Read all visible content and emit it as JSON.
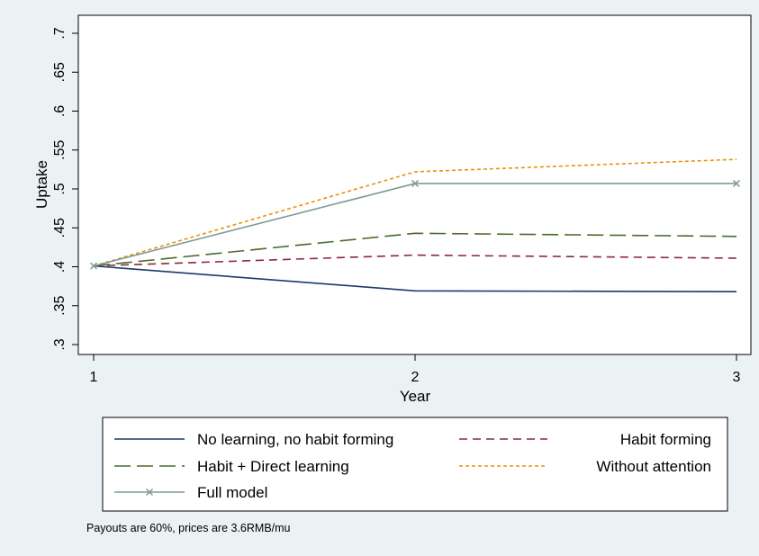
{
  "chart_data": {
    "type": "line",
    "title": "",
    "xlabel": "Year",
    "ylabel": "Uptake",
    "x": [
      1,
      2,
      3
    ],
    "x_ticks": [
      {
        "value": 1,
        "label": "1"
      },
      {
        "value": 2,
        "label": "2"
      },
      {
        "value": 3,
        "label": "3"
      }
    ],
    "xlim": [
      1,
      3
    ],
    "ylim": [
      0.3,
      0.7
    ],
    "y_ticks": [
      {
        "value": 0.3,
        "label": ".3"
      },
      {
        "value": 0.35,
        "label": ".35"
      },
      {
        "value": 0.4,
        "label": ".4"
      },
      {
        "value": 0.45,
        "label": ".45"
      },
      {
        "value": 0.5,
        "label": ".5"
      },
      {
        "value": 0.55,
        "label": ".55"
      },
      {
        "value": 0.6,
        "label": ".6"
      },
      {
        "value": 0.65,
        "label": ".65"
      },
      {
        "value": 0.7,
        "label": ".7"
      }
    ],
    "grid": false,
    "legend_placement": "bottom",
    "series": [
      {
        "name": "No learning, no habit forming",
        "values": [
          0.401,
          0.369,
          0.368
        ],
        "color": "#1a3a6b",
        "dash": "solid",
        "marker": "none"
      },
      {
        "name": "Habit forming",
        "values": [
          0.401,
          0.415,
          0.411
        ],
        "color": "#8b2a3a",
        "dash": "medium",
        "marker": "none"
      },
      {
        "name": "Habit + Direct learning",
        "values": [
          0.401,
          0.443,
          0.439
        ],
        "color": "#4a6b2a",
        "dash": "long",
        "marker": "none"
      },
      {
        "name": "Without attention",
        "values": [
          0.401,
          0.522,
          0.538
        ],
        "color": "#e8930c",
        "dash": "short",
        "marker": "none"
      },
      {
        "name": "Full model",
        "values": [
          0.401,
          0.507,
          0.507
        ],
        "color": "#7f9a98",
        "dash": "solid",
        "marker": "x"
      }
    ],
    "note": "Payouts are 60%, prices are 3.6RMB/mu"
  }
}
